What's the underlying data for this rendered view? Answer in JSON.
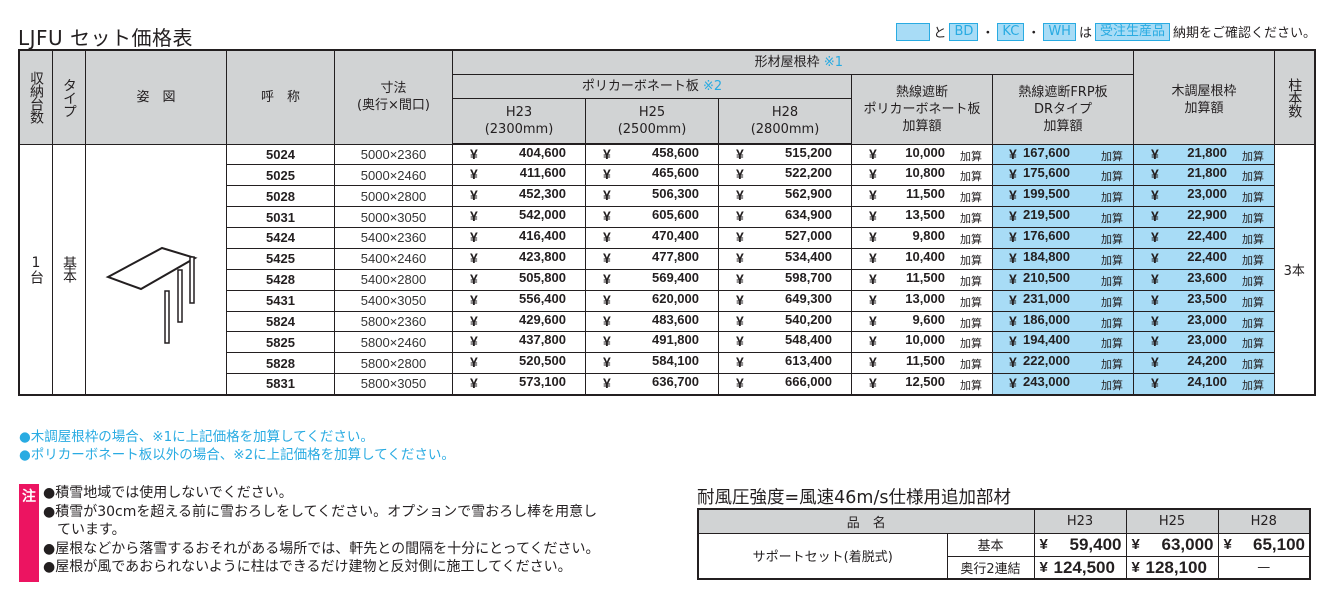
{
  "title": "LJFU セット価格表",
  "legend": {
    "and": "と",
    "codes": [
      "BD",
      "KC",
      "WH"
    ],
    "sep": "・",
    "wa": "は",
    "made_to_order": "受注生産品",
    "suffix": "納期をご確認ください。",
    "accent_color": "#29abe2",
    "fill_color": "#a8dcf6"
  },
  "main_table": {
    "headers": {
      "storage_count": "収納台数",
      "type": "タイプ",
      "figure": "姿　図",
      "model": "呼　称",
      "size_line1": "寸法",
      "size_line2": "(奥行×間口)",
      "frame_group": "形材屋根枠",
      "frame_note": "※1",
      "poly_group": "ポリカーボネート板",
      "poly_note": "※2",
      "h23": "H23",
      "h23_mm": "(2300mm)",
      "h25": "H25",
      "h25_mm": "(2500mm)",
      "h28": "H28",
      "h28_mm": "(2800mm)",
      "heat_poly_1": "熱線遮断",
      "heat_poly_2": "ポリカーボネート板",
      "heat_poly_3": "加算額",
      "frp_1": "熱線遮断FRP板",
      "frp_2": "DRタイプ",
      "frp_3": "加算額",
      "wood_1": "木調屋根枠",
      "wood_2": "加算額",
      "posts": "柱本数"
    },
    "storage_value": "1台",
    "type_value": "基本",
    "posts_value": "3本",
    "yen": "¥",
    "add_label": "加算",
    "rows": [
      {
        "code": "5024",
        "size": "5000×2360",
        "h23": "404,600",
        "h25": "458,600",
        "h28": "515,200",
        "heat": "10,000",
        "frp": "167,600",
        "wood": "21,800"
      },
      {
        "code": "5025",
        "size": "5000×2460",
        "h23": "411,600",
        "h25": "465,600",
        "h28": "522,200",
        "heat": "10,800",
        "frp": "175,600",
        "wood": "21,800"
      },
      {
        "code": "5028",
        "size": "5000×2800",
        "h23": "452,300",
        "h25": "506,300",
        "h28": "562,900",
        "heat": "11,500",
        "frp": "199,500",
        "wood": "23,000"
      },
      {
        "code": "5031",
        "size": "5000×3050",
        "h23": "542,000",
        "h25": "605,600",
        "h28": "634,900",
        "heat": "13,500",
        "frp": "219,500",
        "wood": "22,900"
      },
      {
        "code": "5424",
        "size": "5400×2360",
        "h23": "416,400",
        "h25": "470,400",
        "h28": "527,000",
        "heat": "9,800",
        "frp": "176,600",
        "wood": "22,400"
      },
      {
        "code": "5425",
        "size": "5400×2460",
        "h23": "423,800",
        "h25": "477,800",
        "h28": "534,400",
        "heat": "10,400",
        "frp": "184,800",
        "wood": "22,400"
      },
      {
        "code": "5428",
        "size": "5400×2800",
        "h23": "505,800",
        "h25": "569,400",
        "h28": "598,700",
        "heat": "11,500",
        "frp": "210,500",
        "wood": "23,600"
      },
      {
        "code": "5431",
        "size": "5400×3050",
        "h23": "556,400",
        "h25": "620,000",
        "h28": "649,300",
        "heat": "13,000",
        "frp": "231,000",
        "wood": "23,500"
      },
      {
        "code": "5824",
        "size": "5800×2360",
        "h23": "429,600",
        "h25": "483,600",
        "h28": "540,200",
        "heat": "9,600",
        "frp": "186,000",
        "wood": "23,000"
      },
      {
        "code": "5825",
        "size": "5800×2460",
        "h23": "437,800",
        "h25": "491,800",
        "h28": "548,400",
        "heat": "10,000",
        "frp": "194,400",
        "wood": "23,000"
      },
      {
        "code": "5828",
        "size": "5800×2800",
        "h23": "520,500",
        "h25": "584,100",
        "h28": "613,400",
        "heat": "11,500",
        "frp": "222,000",
        "wood": "24,200"
      },
      {
        "code": "5831",
        "size": "5800×3050",
        "h23": "573,100",
        "h25": "636,700",
        "h28": "666,000",
        "heat": "12,500",
        "frp": "243,000",
        "wood": "24,100"
      }
    ]
  },
  "notes_blue": [
    "●木調屋根枠の場合、※1に上記価格を加算してください。",
    "●ポリカーボネート板以外の場合、※2に上記価格を加算してください。"
  ],
  "warning": {
    "tag": "注",
    "tag_color": "#ec1461",
    "items": [
      "●積雪地域では使用しないでください。",
      "●積雪が30cmを超える前に雪おろしをしてください。オプションで雪おろし棒を用意し",
      "ています。",
      "●屋根などから落雪するおそれがある場所では、軒先との間隔を十分にとってください。",
      "●屋根が風であおられないように柱はできるだけ建物と反対側に施工してください。"
    ]
  },
  "wind": {
    "title": "耐風圧強度=風速46m/s仕様用追加部材",
    "headers": {
      "name": "品　名",
      "h23": "H23",
      "h25": "H25",
      "h28": "H28"
    },
    "item": "サポートセット(着脱式)",
    "rows": [
      {
        "variant": "基本",
        "h23": "59,400",
        "h25": "63,000",
        "h28": "65,100"
      },
      {
        "variant": "奥行2連結",
        "h23": "124,500",
        "h25": "128,100",
        "h28": "—"
      }
    ]
  }
}
